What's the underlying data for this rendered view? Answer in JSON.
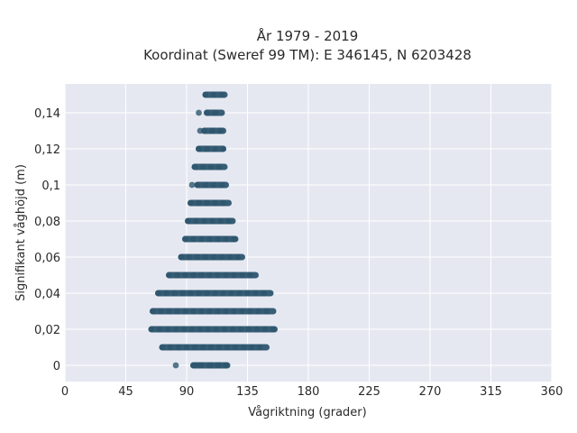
{
  "chart_data": {
    "type": "scatter",
    "title": [
      "År 1979 - 2019",
      "Koordinat (Sweref 99 TM): E 346145, N 6203428"
    ],
    "xlabel": "Vågriktning (grader)",
    "ylabel": "Signifikant våghöjd (m)",
    "xlim": [
      0,
      360
    ],
    "ylim": [
      -0.009,
      0.156
    ],
    "x_ticks": [
      0,
      45,
      90,
      135,
      180,
      225,
      270,
      315,
      360
    ],
    "x_tick_labels": [
      "0",
      "45",
      "90",
      "135",
      "180",
      "225",
      "270",
      "315",
      "360"
    ],
    "y_ticks": [
      0,
      0.02,
      0.04,
      0.06,
      0.08,
      0.1,
      0.12,
      0.14
    ],
    "y_tick_labels": [
      "0",
      "0,02",
      "0,04",
      "0,06",
      "0,08",
      "0,1",
      "0,12",
      "0,14"
    ],
    "grid": true,
    "marker_color": "#2e566e",
    "background_color": "#e6e8f1",
    "bands": [
      {
        "y": 0.0,
        "x_min": 95,
        "x_max": 120,
        "isolated_x": [
          82,
          97,
          100,
          108,
          114,
          119
        ]
      },
      {
        "y": 0.01,
        "x_min": 72,
        "x_max": 149,
        "isolated_x": []
      },
      {
        "y": 0.02,
        "x_min": 64,
        "x_max": 155,
        "isolated_x": []
      },
      {
        "y": 0.03,
        "x_min": 65,
        "x_max": 154,
        "isolated_x": []
      },
      {
        "y": 0.04,
        "x_min": 69,
        "x_max": 152,
        "isolated_x": []
      },
      {
        "y": 0.05,
        "x_min": 77,
        "x_max": 141,
        "isolated_x": []
      },
      {
        "y": 0.06,
        "x_min": 86,
        "x_max": 131,
        "isolated_x": []
      },
      {
        "y": 0.07,
        "x_min": 89,
        "x_max": 126,
        "isolated_x": []
      },
      {
        "y": 0.08,
        "x_min": 91,
        "x_max": 124,
        "isolated_x": []
      },
      {
        "y": 0.09,
        "x_min": 93,
        "x_max": 121,
        "isolated_x": []
      },
      {
        "y": 0.1,
        "x_min": 98,
        "x_max": 119,
        "isolated_x": [
          94
        ]
      },
      {
        "y": 0.11,
        "x_min": 96,
        "x_max": 118,
        "isolated_x": []
      },
      {
        "y": 0.12,
        "x_min": 99,
        "x_max": 117,
        "isolated_x": []
      },
      {
        "y": 0.13,
        "x_min": 103,
        "x_max": 117,
        "isolated_x": [
          100
        ]
      },
      {
        "y": 0.14,
        "x_min": 105,
        "x_max": 116,
        "isolated_x": [
          99
        ]
      },
      {
        "y": 0.15,
        "x_min": 104,
        "x_max": 118,
        "isolated_x": []
      }
    ]
  }
}
